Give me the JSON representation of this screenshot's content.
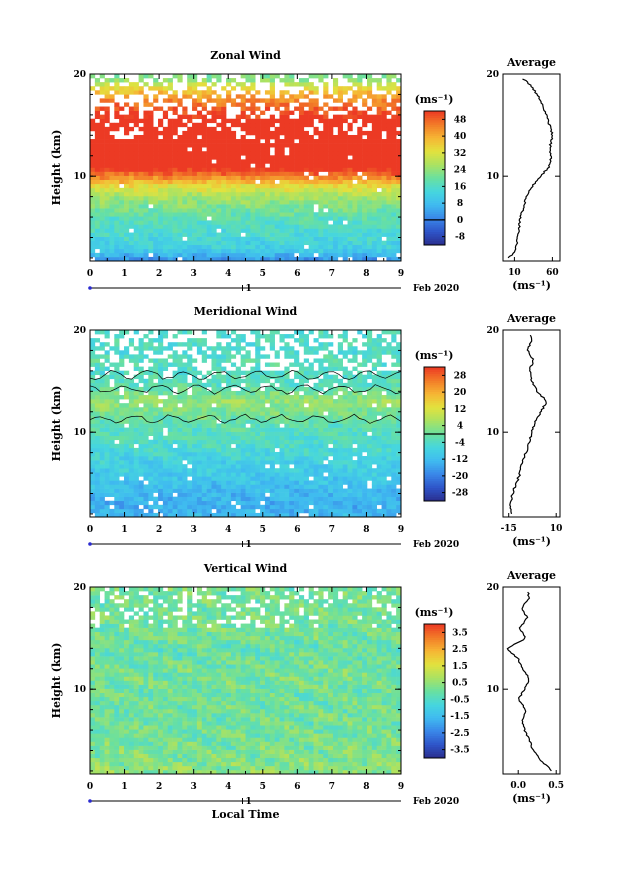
{
  "time_axis": {
    "ticks": [
      "0",
      "1",
      "2",
      "3",
      "4",
      "5",
      "6",
      "7",
      "8",
      "9"
    ],
    "day_label": "1",
    "date_label": "Feb 2020",
    "xlabel": "Local Time"
  },
  "chart_data": [
    {
      "type": "heatmap",
      "title": "Zonal Wind",
      "ylabel": "Height (km)",
      "yticks": [
        "20",
        "10"
      ],
      "xlim": [
        0,
        9
      ],
      "ylim": [
        1.7,
        20
      ],
      "unit_label": "(ms⁻¹)",
      "colorbar_ticks": [
        "48",
        "40",
        "32",
        "24",
        "16",
        "8",
        "0",
        "-8"
      ],
      "colorbar_range": [
        -12,
        52
      ],
      "zero_line": 0,
      "profile_title": "Average",
      "profile_xticks": [
        "10",
        "60"
      ],
      "profile_xlim": [
        -5,
        70
      ],
      "profile_xlabel": "(ms⁻¹)",
      "profile": {
        "height": [
          2.0,
          2.5,
          3.0,
          4.0,
          5.0,
          6.0,
          7.0,
          8.0,
          9.0,
          10.0,
          11.0,
          12.0,
          13.0,
          14.0,
          15.0,
          16.0,
          17.0,
          18.0,
          19.0,
          19.5
        ],
        "value": [
          3,
          9,
          12,
          14,
          16,
          18,
          22,
          26,
          33,
          45,
          56,
          58,
          57,
          60,
          56,
          52,
          47,
          40,
          30,
          22
        ]
      },
      "grid": false
    },
    {
      "type": "heatmap",
      "title": "Meridional Wind",
      "ylabel": "Height (km)",
      "yticks": [
        "20",
        "10"
      ],
      "xlim": [
        0,
        9
      ],
      "ylim": [
        1.7,
        20
      ],
      "unit_label": "(ms⁻¹)",
      "colorbar_ticks": [
        "28",
        "20",
        "12",
        "4",
        "-4",
        "-12",
        "-20",
        "-28"
      ],
      "colorbar_range": [
        -32,
        32
      ],
      "zero_line": 0,
      "profile_title": "Average",
      "profile_xticks": [
        "-15",
        "10"
      ],
      "profile_xlim": [
        -18,
        12
      ],
      "profile_xlabel": "(ms⁻¹)",
      "profile": {
        "height": [
          2.0,
          2.5,
          3.0,
          4.0,
          5.0,
          6.0,
          7.0,
          8.0,
          9.0,
          10.0,
          11.0,
          12.0,
          13.0,
          14.0,
          15.0,
          16.0,
          17.0,
          18.0,
          19.0,
          19.5
        ],
        "value": [
          -13,
          -14,
          -14,
          -13,
          -11,
          -9,
          -8,
          -6,
          -4,
          -3,
          -1,
          2,
          5,
          0,
          -3,
          -4,
          -2,
          -5,
          -3,
          -4
        ]
      },
      "grid": false
    },
    {
      "type": "heatmap",
      "title": "Vertical Wind",
      "ylabel": "Height (km)",
      "yticks": [
        "20",
        "10"
      ],
      "xlim": [
        0,
        9
      ],
      "ylim": [
        1.7,
        20
      ],
      "unit_label": "(ms⁻¹)",
      "colorbar_ticks": [
        "3.5",
        "2.5",
        "1.5",
        "0.5",
        "-0.5",
        "-1.5",
        "-2.5",
        "-3.5"
      ],
      "colorbar_range": [
        -4,
        4
      ],
      "zero_line": null,
      "xlabel": "Local Time",
      "profile_title": "Average",
      "profile_xticks": [
        "0.0",
        "0.5"
      ],
      "profile_xlim": [
        -0.2,
        0.55
      ],
      "profile_xlabel": "(ms⁻¹)",
      "profile": {
        "height": [
          2.0,
          3.0,
          4.0,
          5.0,
          6.0,
          7.0,
          8.0,
          9.0,
          10.0,
          11.0,
          12.0,
          13.0,
          14.0,
          15.0,
          16.0,
          17.0,
          18.0,
          19.0,
          19.5
        ],
        "value": [
          0.45,
          0.3,
          0.2,
          0.15,
          0.08,
          0.05,
          0.1,
          0.0,
          0.08,
          0.15,
          0.05,
          0.0,
          -0.15,
          0.1,
          0.02,
          0.12,
          0.05,
          0.15,
          0.12
        ]
      },
      "grid": false
    }
  ]
}
